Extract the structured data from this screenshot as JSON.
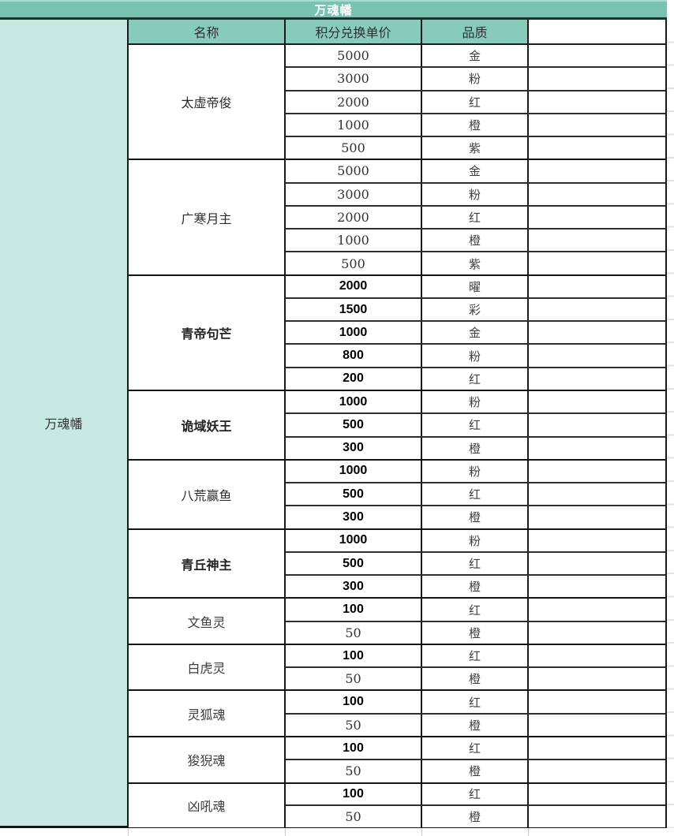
{
  "title": "万魂幡",
  "side_label": "万魂幡",
  "headers": {
    "name": "名称",
    "price": "积分兑换单价",
    "quality": "品质"
  },
  "colors": {
    "title_bg": "#79c2b1",
    "header_bg": "#87ccbb",
    "side_bg": "#c7e9e1",
    "border_dark": "#1a1a1a",
    "title_text": "#ffffff"
  },
  "groups": [
    {
      "name": "太虚帝俊",
      "name_style": "sans",
      "rows": [
        {
          "price": "5000",
          "quality": "金",
          "price_style": "serif"
        },
        {
          "price": "3000",
          "quality": "粉",
          "price_style": "serif"
        },
        {
          "price": "2000",
          "quality": "红",
          "price_style": "serif"
        },
        {
          "price": "1000",
          "quality": "橙",
          "price_style": "serif"
        },
        {
          "price": "500",
          "quality": "紫",
          "price_style": "serif"
        }
      ]
    },
    {
      "name": "广寒月主",
      "name_style": "sans",
      "rows": [
        {
          "price": "5000",
          "quality": "金",
          "price_style": "serif"
        },
        {
          "price": "3000",
          "quality": "粉",
          "price_style": "serif"
        },
        {
          "price": "2000",
          "quality": "红",
          "price_style": "serif"
        },
        {
          "price": "1000",
          "quality": "橙",
          "price_style": "serif"
        },
        {
          "price": "500",
          "quality": "紫",
          "price_style": "serif"
        }
      ]
    },
    {
      "name": "青帝句芒",
      "name_style": "sans-md",
      "rows": [
        {
          "price": "2000",
          "quality": "曜",
          "price_style": "bold"
        },
        {
          "price": "1500",
          "quality": "彩",
          "price_style": "bold"
        },
        {
          "price": "1000",
          "quality": "金",
          "price_style": "bold"
        },
        {
          "price": "800",
          "quality": "粉",
          "price_style": "bold"
        },
        {
          "price": "200",
          "quality": "红",
          "price_style": "bold"
        }
      ]
    },
    {
      "name": "诡域妖王",
      "name_style": "sans-md",
      "rows": [
        {
          "price": "1000",
          "quality": "粉",
          "price_style": "bold"
        },
        {
          "price": "500",
          "quality": "红",
          "price_style": "bold"
        },
        {
          "price": "300",
          "quality": "橙",
          "price_style": "bold"
        }
      ]
    },
    {
      "name": "八荒赢鱼",
      "name_style": "sans",
      "rows": [
        {
          "price": "1000",
          "quality": "粉",
          "price_style": "bold"
        },
        {
          "price": "500",
          "quality": "红",
          "price_style": "bold"
        },
        {
          "price": "300",
          "quality": "橙",
          "price_style": "bold"
        }
      ]
    },
    {
      "name": "青丘神主",
      "name_style": "sans-md",
      "rows": [
        {
          "price": "1000",
          "quality": "粉",
          "price_style": "bold"
        },
        {
          "price": "500",
          "quality": "红",
          "price_style": "bold"
        },
        {
          "price": "300",
          "quality": "橙",
          "price_style": "bold"
        }
      ]
    },
    {
      "name": "文鱼灵",
      "name_style": "serif",
      "rows": [
        {
          "price": "100",
          "quality": "红",
          "price_style": "bold"
        },
        {
          "price": "50",
          "quality": "橙",
          "price_style": "serif"
        }
      ]
    },
    {
      "name": "白虎灵",
      "name_style": "serif",
      "rows": [
        {
          "price": "100",
          "quality": "红",
          "price_style": "bold"
        },
        {
          "price": "50",
          "quality": "橙",
          "price_style": "serif"
        }
      ]
    },
    {
      "name": "灵狐魂",
      "name_style": "serif",
      "rows": [
        {
          "price": "100",
          "quality": "红",
          "price_style": "bold"
        },
        {
          "price": "50",
          "quality": "橙",
          "price_style": "serif"
        }
      ]
    },
    {
      "name": "狻猊魂",
      "name_style": "serif",
      "rows": [
        {
          "price": "100",
          "quality": "红",
          "price_style": "bold"
        },
        {
          "price": "50",
          "quality": "橙",
          "price_style": "serif"
        }
      ]
    },
    {
      "name": "凶吼魂",
      "name_style": "serif",
      "rows": [
        {
          "price": "100",
          "quality": "红",
          "price_style": "bold"
        },
        {
          "price": "50",
          "quality": "橙",
          "price_style": "serif"
        }
      ]
    }
  ]
}
